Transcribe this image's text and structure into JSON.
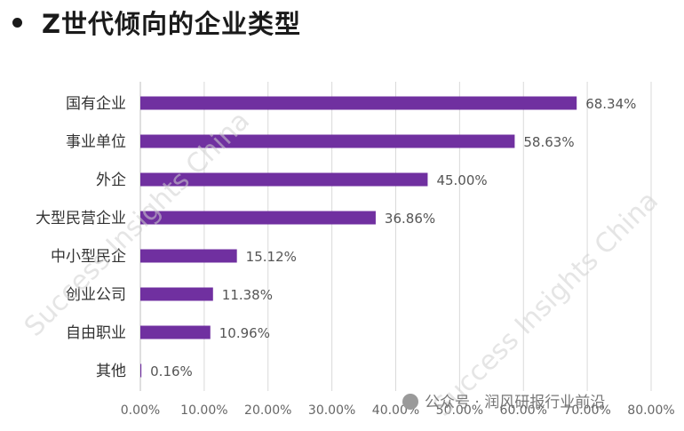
{
  "heading": {
    "title": "Z世代倾向的企业类型"
  },
  "chart_data": {
    "type": "bar",
    "orientation": "horizontal",
    "title": "Z世代倾向的企业类型",
    "categories": [
      "国有企业",
      "事业单位",
      "外企",
      "大型民营企业",
      "中小型民企",
      "创业公司",
      "自由职业",
      "其他"
    ],
    "values": [
      68.34,
      58.63,
      45.0,
      36.86,
      15.12,
      11.38,
      10.96,
      0.16
    ],
    "data_labels": [
      "68.34%",
      "58.63%",
      "45.00%",
      "36.86%",
      "15.12%",
      "11.38%",
      "10.96%",
      "0.16%"
    ],
    "xlim": [
      0,
      80
    ],
    "x_ticks": [
      0,
      10,
      20,
      30,
      40,
      50,
      60,
      70,
      80
    ],
    "x_tick_labels": [
      "0.00%",
      "10.00%",
      "20.00%",
      "30.00%",
      "40.00%",
      "50.00%",
      "60.00%",
      "70.00%",
      "80.00%"
    ],
    "grid": true,
    "bar_color": "#7030a0",
    "gridline_color": "#d9d9d9"
  },
  "watermark": {
    "text": "Success Insights China",
    "wechat_label": "公众号 · 润风研报行业前沿"
  }
}
